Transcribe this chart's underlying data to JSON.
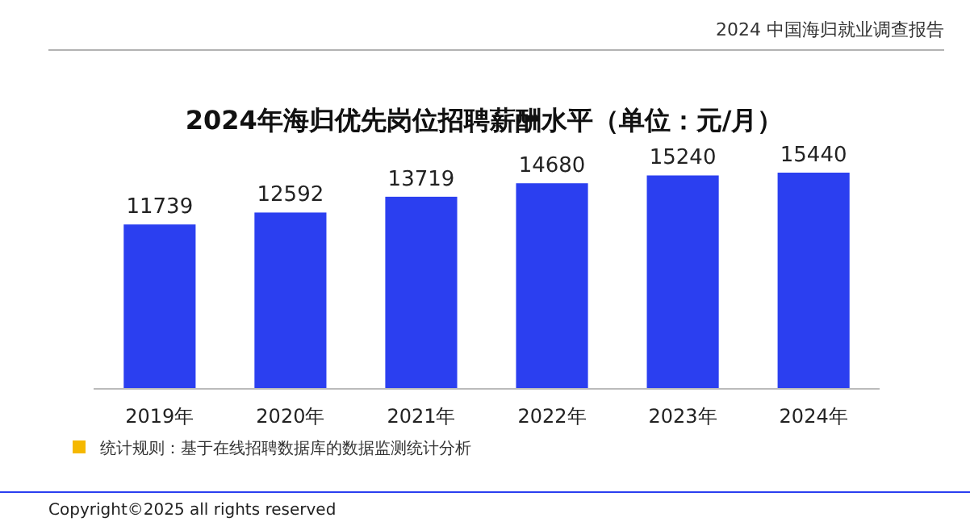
{
  "chart_data": {
    "type": "bar",
    "title": "2024年海归优先岗位招聘薪酬水平（单位：元/月）",
    "subtitle": "2024 中国海归就业调查报告",
    "categories": [
      "2019年",
      "2020年",
      "2021年",
      "2022年",
      "2023年",
      "2024年"
    ],
    "values": [
      11739,
      12592,
      13719,
      14680,
      15240,
      15440
    ],
    "color": "#2b3ff0",
    "data_labels": true,
    "annotations": [
      "统计规则：基于在线招聘数据库的数据监测统计分析",
      "Copyright©2025 all rights reserved"
    ]
  }
}
